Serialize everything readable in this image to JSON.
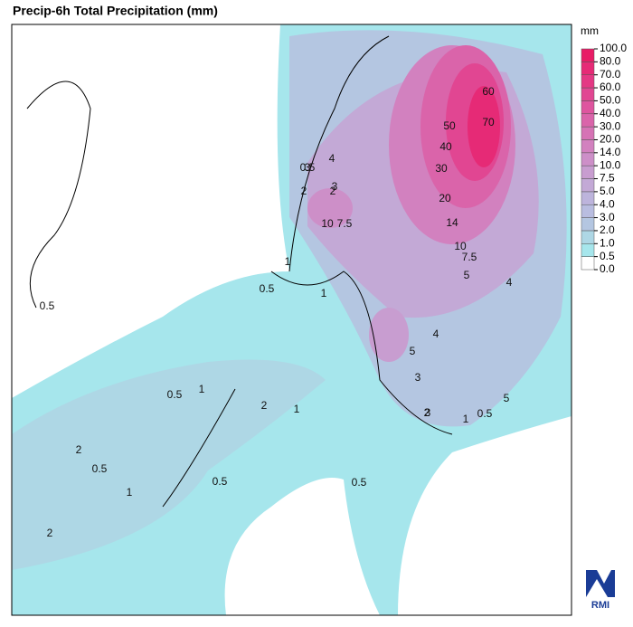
{
  "title": "Precip-6h Total Precipitation (mm)",
  "legend": {
    "unit": "mm",
    "levels": [
      {
        "value": 0,
        "label": "0.0"
      },
      {
        "value": 0.5,
        "label": "0.5"
      },
      {
        "value": 1,
        "label": "1.0"
      },
      {
        "value": 2,
        "label": "2.0"
      },
      {
        "value": 3,
        "label": "3.0"
      },
      {
        "value": 4,
        "label": "4.0"
      },
      {
        "value": 5,
        "label": "5.0"
      },
      {
        "value": 7.5,
        "label": "7.5"
      },
      {
        "value": 10,
        "label": "10.0"
      },
      {
        "value": 14,
        "label": "14.0"
      },
      {
        "value": 20,
        "label": "20.0"
      },
      {
        "value": 30,
        "label": "30.0"
      },
      {
        "value": 40,
        "label": "40.0"
      },
      {
        "value": 50,
        "label": "50.0"
      },
      {
        "value": 60,
        "label": "60.0"
      },
      {
        "value": 70,
        "label": "70.0"
      },
      {
        "value": 80,
        "label": "80.0"
      },
      {
        "value": 100,
        "label": "100.0"
      }
    ],
    "colors": [
      "#ffffff",
      "#a6e6ec",
      "#aed7e5",
      "#b4c6e1",
      "#b9bde0",
      "#bdb4dc",
      "#c3a9d6",
      "#c89dd0",
      "#cd8fc8",
      "#d281bf",
      "#d673b5",
      "#da64aa",
      "#de559f",
      "#e14692",
      "#e43884",
      "#e62a76",
      "#e81c66"
    ]
  },
  "contour_labels": [
    "60",
    "70",
    "50",
    "40",
    "30",
    "20",
    "14",
    "10",
    "7.5",
    "5",
    "4",
    "3",
    "2",
    "1",
    "0.5",
    "10",
    "7.5",
    "5",
    "4",
    "3",
    "2",
    "1",
    "0.5",
    "5",
    "4",
    "3",
    "3",
    "2",
    "1",
    "0.5",
    "2",
    "1",
    "0.5",
    "2",
    "0.5",
    "1",
    "0.5",
    "0.5",
    "2",
    "1",
    "0.5"
  ],
  "logo": "RMI"
}
